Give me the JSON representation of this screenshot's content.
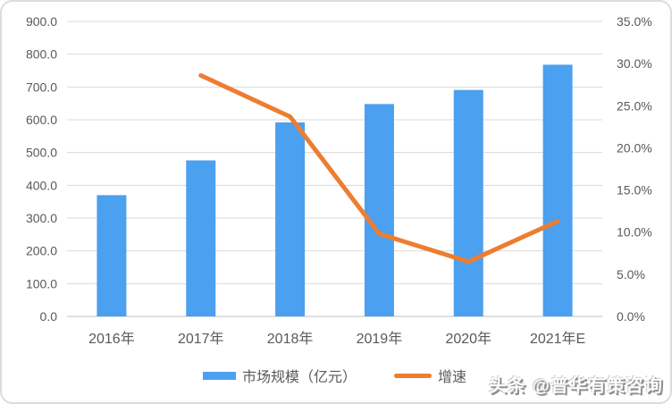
{
  "watermark": {
    "text": "头条 @普华有策咨询"
  },
  "chart_data": {
    "type": "combo-bar-line",
    "categories": [
      "2016年",
      "2017年",
      "2018年",
      "2019年",
      "2020年",
      "2021年E"
    ],
    "series": [
      {
        "name": "市场规模（亿元）",
        "type": "bar",
        "axis": "left",
        "color": "#4BA0F0",
        "values": [
          370,
          476,
          592,
          648,
          691,
          768
        ]
      },
      {
        "name": "增速",
        "type": "line",
        "axis": "right",
        "color": "#ED7D31",
        "values": [
          null,
          28.6,
          23.7,
          9.8,
          6.5,
          11.3
        ]
      }
    ],
    "left_axis": {
      "min": 0,
      "max": 900,
      "step": 100,
      "tick_labels": [
        "0.0",
        "100.0",
        "200.0",
        "300.0",
        "400.0",
        "500.0",
        "600.0",
        "700.0",
        "800.0",
        "900.0"
      ]
    },
    "right_axis": {
      "min": 0,
      "max": 35,
      "step": 5,
      "tick_labels": [
        "0.0%",
        "5.0%",
        "10.0%",
        "15.0%",
        "20.0%",
        "25.0%",
        "30.0%",
        "35.0%"
      ]
    },
    "grid": true,
    "legend_position": "bottom",
    "colors": {
      "gridline": "#d9d9d9",
      "baseline": "#bfbfbf",
      "tick_text": "#595959"
    }
  }
}
